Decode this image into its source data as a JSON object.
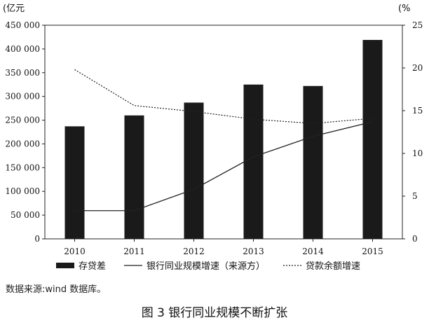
{
  "chart_data": {
    "type": "bar",
    "categories": [
      "2010",
      "2011",
      "2012",
      "2013",
      "2014",
      "2015"
    ],
    "left_unit": "(亿元",
    "right_unit": "(%",
    "ylim_left": [
      0,
      450000
    ],
    "ylim_right": [
      0,
      25
    ],
    "left_ticks": [
      "0",
      "50 000",
      "100 000",
      "150 000",
      "200 000",
      "250 000",
      "300 000",
      "350 000",
      "400 000",
      "450 000"
    ],
    "right_ticks": [
      "0",
      "5",
      "10",
      "15",
      "20",
      "25"
    ],
    "series": [
      {
        "name": "存贷差",
        "kind": "bar",
        "axis": "left",
        "values": [
          237000,
          260000,
          287000,
          325000,
          322000,
          419000
        ],
        "color": "#1a1a1a"
      },
      {
        "name": "银行同业规模增速（来源方）",
        "kind": "line",
        "axis": "right",
        "style": "solid",
        "values": [
          3.3,
          3.3,
          5.8,
          9.6,
          12.0,
          13.7
        ],
        "color": "#222222"
      },
      {
        "name": "贷款余额增速",
        "kind": "line",
        "axis": "right",
        "style": "dotted",
        "values": [
          19.8,
          15.6,
          14.9,
          14.0,
          13.5,
          14.1
        ],
        "color": "#222222"
      }
    ],
    "legend_position": "bottom",
    "grid": false
  },
  "source_note": "数据来源:wind 数据库。",
  "caption": "图 3   银行同业规模不断扩张"
}
